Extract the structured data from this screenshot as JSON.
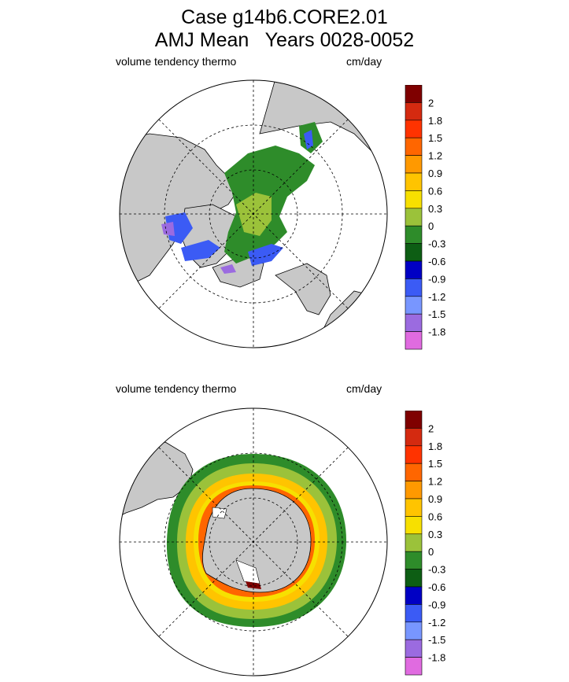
{
  "title": {
    "line1": "Case g14b6.CORE2.01",
    "line2": "AMJ Mean   Years 0028-0052"
  },
  "panels": [
    {
      "variable": "volume tendency thermo",
      "units": "cm/day",
      "region": "Northern Hemisphere"
    },
    {
      "variable": "volume tendency thermo",
      "units": "cm/day",
      "region": "Southern Hemisphere"
    }
  ],
  "colorbar": {
    "labels": [
      "2",
      "1.8",
      "1.5",
      "1.2",
      "0.9",
      "0.6",
      "0.3",
      "0",
      "-0.3",
      "-0.6",
      "-0.9",
      "-1.2",
      "-1.5",
      "-1.8"
    ],
    "colors": [
      "#7f0000",
      "#d42a10",
      "#ff3300",
      "#ff6600",
      "#ff9900",
      "#ffc400",
      "#f7e000",
      "#9bc23a",
      "#2e8c2a",
      "#0d5e14",
      "#0000c4",
      "#3b5bf5",
      "#7896ff",
      "#9b6be0",
      "#e06be0"
    ]
  },
  "colors": {
    "land": "#c8c8c8",
    "ocean": "#ffffff",
    "grid": "#000000"
  }
}
